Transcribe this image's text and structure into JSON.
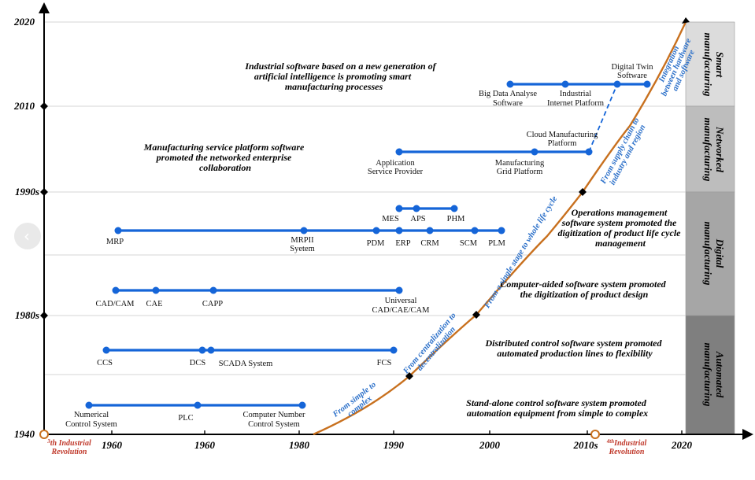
{
  "y_axis": {
    "labels": [
      "2020",
      "2010",
      "1990s",
      "1980s",
      "1940"
    ]
  },
  "x_axis": {
    "labels": [
      "1960",
      "1960",
      "1980",
      "1990",
      "2000",
      "2010s",
      "2020"
    ]
  },
  "revolutions": {
    "third_sup": "3",
    "third_line1": "th Industrial",
    "third_line2": "Revolution",
    "fourth_sup": "4",
    "fourth_prefix": "th",
    "fourth_line1": "Industrial",
    "fourth_line2": "Revolution"
  },
  "stages": [
    {
      "line1": "Smart",
      "line2": "manufacturing",
      "color": "#dcdcdc"
    },
    {
      "line1": "Networked",
      "line2": "manufacturing",
      "color": "#bdbdbd"
    },
    {
      "line1": "Digital",
      "line2": "manufacturing",
      "color": "#a6a6a6"
    },
    {
      "line1": "Automated",
      "line2": "manufacturing",
      "color": "#7f7f7f"
    }
  ],
  "descriptions": [
    {
      "lines": [
        "Industrial software based on a new generation of",
        "artificial intelligence is promoting smart",
        "manufacturing processes"
      ]
    },
    {
      "lines": [
        "Manufacturing service platform software",
        "promoted the networked enterprise",
        "collaboration"
      ]
    },
    {
      "lines": [
        "Operations management",
        "software system promoted the",
        "digitization of product life cycle",
        "management"
      ]
    },
    {
      "lines": [
        "Computer-aided software system promoted",
        "the digitization of product design"
      ]
    },
    {
      "lines": [
        "Distributed control software system promoted",
        "automated production lines to flexibility"
      ]
    },
    {
      "lines": [
        "Stand-alone control software system promoted",
        "automation equipment from simple to complex"
      ]
    }
  ],
  "nodes": {
    "big_data": [
      "Big Data Analyse",
      "Software"
    ],
    "industrial_internet": [
      "Industrial",
      "Internet Platform"
    ],
    "digital_twin": [
      "Digital Twin",
      "Software"
    ],
    "cloud_mfg": [
      "Cloud Manufacturing",
      "Platform"
    ],
    "asp": [
      "Application",
      "Service Provider"
    ],
    "mgp": [
      "Manufacturing",
      "Grid Platform"
    ],
    "mes": "MES",
    "aps": "APS",
    "phm": "PHM",
    "mrp": "MRP",
    "mrpii": [
      "MRPII",
      "Syetem"
    ],
    "pdm": "PDM",
    "erp": "ERP",
    "crm": "CRM",
    "scm": "SCM",
    "plm": "PLM",
    "cadcam": "CAD/CAM",
    "cae": "CAE",
    "capp": "CAPP",
    "universal": [
      "Universal",
      "CAD/CAE/CAM"
    ],
    "ccs": "CCS",
    "dcs": "DCS",
    "scada": "SCADA System",
    "fcs": "FCS",
    "nc": [
      "Numerical",
      "Control System"
    ],
    "plc": "PLC",
    "cnc": [
      "Computer Number",
      "Control System"
    ]
  },
  "curve_labels": {
    "simple_complex": [
      "From simple to",
      "complex"
    ],
    "centralization": [
      "From centralization to",
      "decentralization"
    ],
    "lifecycle": "From a single stage to whole life cycle",
    "supply_chain": [
      "From supply chain to",
      "industry and region"
    ],
    "integration": [
      "Integration",
      "between hardware",
      "and software"
    ]
  },
  "colors": {
    "line_blue": "#1565d8",
    "curve_orange": "#c8701e",
    "label_blue": "#2a6fc9",
    "revolution_red": "#c0392b"
  }
}
